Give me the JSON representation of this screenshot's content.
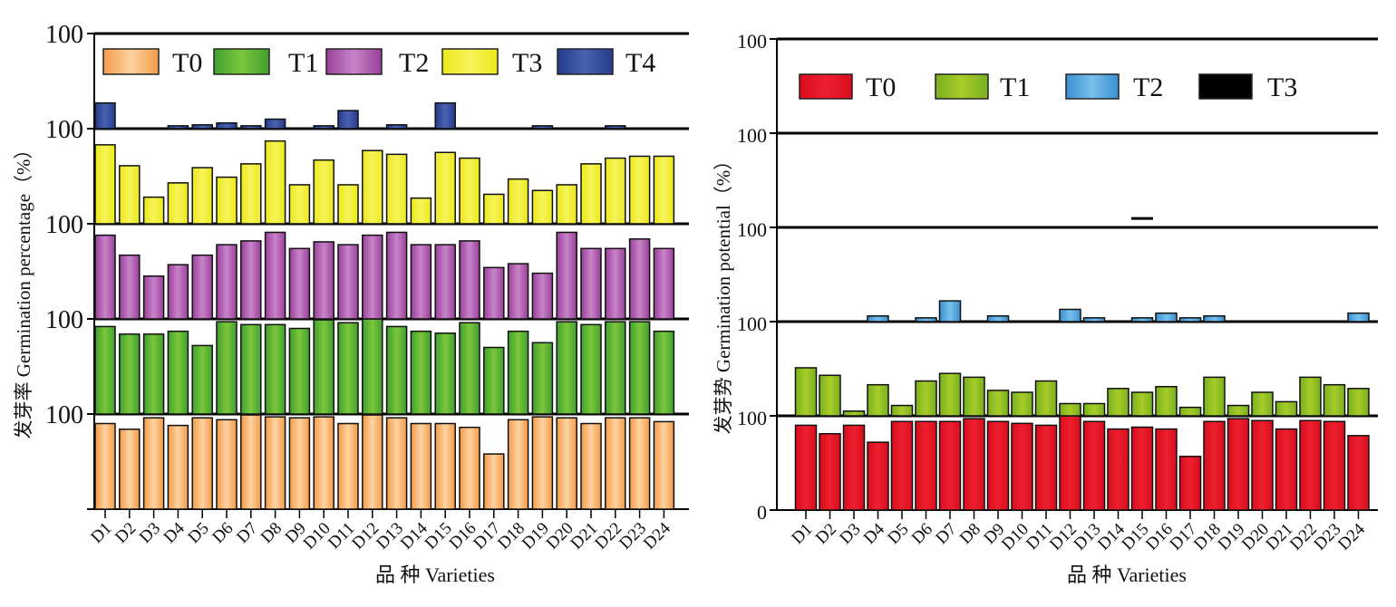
{
  "chart_data": [
    {
      "type": "bar",
      "ylabel": "发芽率 Germination percentage（%）",
      "xlabel": "品 种 Varieties",
      "categories": [
        "D1",
        "D2",
        "D3",
        "D4",
        "D5",
        "D6",
        "D7",
        "D8",
        "D9",
        "D10",
        "D11",
        "D12",
        "D13",
        "D14",
        "D15",
        "D16",
        "D17",
        "D18",
        "D19",
        "D20",
        "D21",
        "D22",
        "D23",
        "D24"
      ],
      "ylim": [
        0,
        100
      ],
      "panel_tick_labels": [
        "",
        "100",
        "100",
        "100",
        "100",
        "100"
      ],
      "legend_placement": "top",
      "series": [
        {
          "name": "T0",
          "color": "#f59a48",
          "light": "#fcd3a0",
          "values": [
            90,
            84,
            96,
            88,
            96,
            94,
            99,
            97,
            96,
            97,
            90,
            99,
            96,
            90,
            90,
            86,
            58,
            94,
            97,
            96,
            90,
            96,
            96,
            92
          ]
        },
        {
          "name": "T1",
          "color": "#3fa030",
          "light": "#7cc63a",
          "values": [
            92,
            84,
            84,
            87,
            72,
            97,
            94,
            94,
            90,
            99,
            96,
            100,
            92,
            87,
            85,
            96,
            70,
            87,
            75,
            97,
            94,
            97,
            97,
            87
          ]
        },
        {
          "name": "T2",
          "color": "#9a3f9a",
          "light": "#c884c8",
          "values": [
            88,
            67,
            45,
            57,
            67,
            78,
            82,
            91,
            74,
            81,
            78,
            88,
            91,
            78,
            78,
            82,
            54,
            58,
            48,
            91,
            74,
            74,
            84,
            74
          ]
        },
        {
          "name": "T3",
          "color": "#ece81a",
          "light": "#f6f45a",
          "values": [
            83,
            61,
            28,
            43,
            59,
            49,
            63,
            87,
            41,
            67,
            41,
            77,
            73,
            27,
            75,
            69,
            31,
            47,
            35,
            41,
            63,
            69,
            71,
            71
          ]
        },
        {
          "name": "T4",
          "color": "#253a8c",
          "light": "#4a62b0",
          "values": [
            27,
            0,
            0,
            3,
            4,
            6,
            3,
            10,
            0,
            3,
            19,
            0,
            4,
            0,
            27,
            0,
            0,
            0,
            3,
            0,
            0,
            3,
            0,
            0
          ]
        }
      ]
    },
    {
      "type": "bar",
      "ylabel": "发芽势 Germination potential（%）",
      "xlabel": "品 种 Varieties",
      "categories": [
        "D1",
        "D2",
        "D3",
        "D4",
        "D5",
        "D6",
        "D7",
        "D8",
        "D9",
        "D10",
        "D11",
        "D12",
        "D13",
        "D14",
        "D15",
        "D16",
        "D17",
        "D18",
        "D19",
        "D20",
        "D21",
        "D22",
        "D23",
        "D24"
      ],
      "ylim": [
        0,
        100
      ],
      "panel_tick_labels": [
        "0",
        "100",
        "100",
        "100",
        "100",
        "100"
      ],
      "legend_placement": "top",
      "series": [
        {
          "name": "T0",
          "color": "#d80c1c",
          "light": "#ee2030",
          "values": [
            90,
            81,
            90,
            72,
            94,
            94,
            94,
            97,
            94,
            92,
            90,
            100,
            94,
            86,
            88,
            86,
            57,
            94,
            97,
            95,
            86,
            95,
            94,
            79
          ]
        },
        {
          "name": "T1",
          "color": "#78b020",
          "light": "#a8cc28",
          "values": [
            51,
            43,
            5,
            33,
            11,
            37,
            45,
            41,
            27,
            25,
            37,
            13,
            13,
            29,
            25,
            31,
            9,
            41,
            11,
            25,
            15,
            41,
            33,
            29
          ]
        },
        {
          "name": "T2",
          "color": "#3a90d0",
          "light": "#78c0ec",
          "values": [
            0,
            0,
            0,
            6,
            0,
            4,
            22,
            0,
            6,
            0,
            0,
            13,
            4,
            0,
            4,
            9,
            4,
            6,
            0,
            0,
            0,
            0,
            0,
            9
          ]
        },
        {
          "name": "T3",
          "color": "#000000",
          "light": "#000000",
          "values": [
            0,
            0,
            0,
            0,
            0,
            0,
            0,
            0,
            0,
            0,
            0,
            0,
            0,
            0,
            9,
            0,
            0,
            0,
            0,
            0,
            0,
            0,
            0,
            0
          ]
        }
      ]
    }
  ]
}
